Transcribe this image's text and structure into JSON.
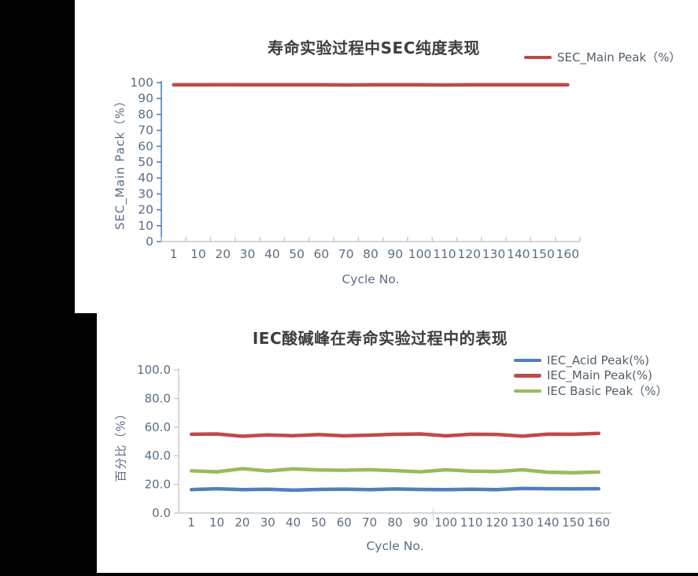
{
  "window": {
    "background": "#000000",
    "panel_background": "#ffffff"
  },
  "colors": {
    "sec_main": "#be4b48",
    "iec_acid": "#4e80bc",
    "iec_main": "#be4b48",
    "iec_basic": "#9aba58",
    "axis_blue": "#4e80bc",
    "axis_gray": "#c8c8c8",
    "tick_text": "#5b6e83",
    "title_text": "#3e3e3e"
  },
  "chart_data": [
    {
      "type": "line",
      "title": "寿命实验过程中SEC纯度表现",
      "xlabel": "Cycle No.",
      "ylabel": "SEC_Main Pack（%）",
      "ylim": [
        0,
        100
      ],
      "y_ticks": [
        "100",
        "90",
        "80",
        "70",
        "60",
        "50",
        "40",
        "30",
        "20",
        "10",
        "0"
      ],
      "categories": [
        "1",
        "10",
        "20",
        "30",
        "40",
        "50",
        "60",
        "70",
        "80",
        "90",
        "100",
        "110",
        "120",
        "130",
        "140",
        "150",
        "160"
      ],
      "grid": false,
      "legend_position": "top-right",
      "series": [
        {
          "name": "SEC_Main Peak（%）",
          "color": "#be4b48",
          "values": [
            98.6,
            98.6,
            98.7,
            98.6,
            98.6,
            98.6,
            98.6,
            98.5,
            98.6,
            98.6,
            98.6,
            98.5,
            98.6,
            98.6,
            98.6,
            98.6,
            98.6
          ]
        }
      ]
    },
    {
      "type": "line",
      "title": "IEC酸碱峰在寿命实验过程中的表现",
      "xlabel": "Cycle No.",
      "ylabel": "百分比（%）",
      "ylim": [
        0,
        100
      ],
      "y_ticks": [
        "100.0",
        "80.0",
        "60.0",
        "40.0",
        "20.0",
        "0.0"
      ],
      "categories": [
        "1",
        "10",
        "20",
        "30",
        "40",
        "50",
        "60",
        "70",
        "80",
        "90",
        "100",
        "110",
        "120",
        "130",
        "140",
        "150",
        "160"
      ],
      "grid": false,
      "legend_position": "top-right",
      "series": [
        {
          "name": "IEC_Acid Peak(%)",
          "color": "#4e80bc",
          "values": [
            16.4,
            17.0,
            16.3,
            16.6,
            16.0,
            16.5,
            16.7,
            16.3,
            16.8,
            16.5,
            16.3,
            16.6,
            16.4,
            17.2,
            17.0,
            16.9,
            17.0
          ]
        },
        {
          "name": "IEC_Main Peak(%)",
          "color": "#be4b48",
          "values": [
            55.0,
            55.2,
            53.6,
            54.5,
            54.0,
            54.8,
            53.9,
            54.4,
            55.0,
            55.2,
            53.9,
            55.0,
            54.9,
            53.7,
            55.1,
            55.0,
            55.6
          ]
        },
        {
          "name": "IEC  Basic Peak（%）",
          "color": "#9aba58",
          "values": [
            29.5,
            28.8,
            31.0,
            29.4,
            30.8,
            30.1,
            29.9,
            30.3,
            29.6,
            28.8,
            30.2,
            29.3,
            29.0,
            30.2,
            28.5,
            28.2,
            28.6
          ]
        }
      ]
    }
  ]
}
